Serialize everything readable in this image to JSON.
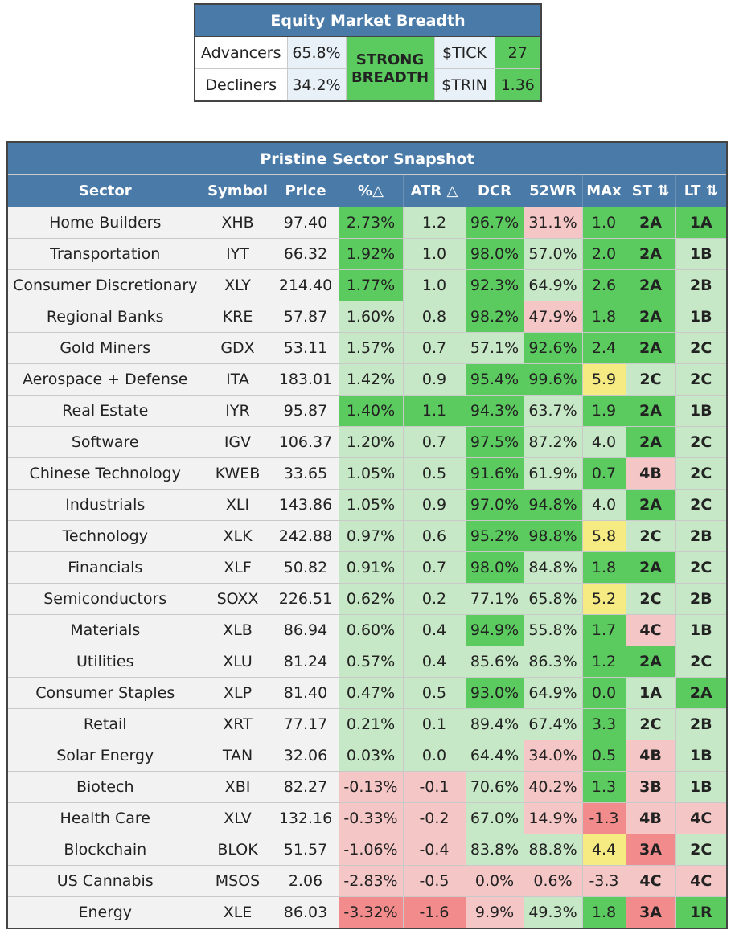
{
  "breadth": {
    "title": "Equity Market Breadth",
    "advancers_label": "Advancers",
    "advancers_value": "65.8%",
    "decliners_label": "Decliners",
    "decliners_value": "34.2%",
    "status": "STRONG BREADTH",
    "tick_label": "$TICK",
    "tick_value": "27",
    "trin_label": "$TRIN",
    "trin_value": "1.36",
    "colors": {
      "status": "#5ccb5f",
      "tick": "#5ccb5f",
      "trin": "#5ccb5f"
    }
  },
  "sector_table": {
    "title": "Pristine Sector Snapshot",
    "columns": [
      "Sector",
      "Symbol",
      "Price",
      "%△",
      "ATR △",
      "DCR",
      "52WR",
      "MAx",
      "ST ⇅",
      "LT ⇅"
    ],
    "palette": {
      "G": "#5ccb5f",
      "L": "#c6e8c6",
      "P": "#f5c6c6",
      "R": "#f28b8b",
      "Y": "#f5eb82"
    },
    "rows": [
      {
        "cells": [
          "Home Builders",
          "XHB",
          "97.40",
          "2.73%",
          "1.2",
          "96.7%",
          "31.1%",
          "1.0",
          "2A",
          "1A"
        ],
        "colors": [
          "G",
          "L",
          "G",
          "P",
          "G",
          "G",
          "G"
        ]
      },
      {
        "cells": [
          "Transportation",
          "IYT",
          "66.32",
          "1.92%",
          "1.0",
          "98.0%",
          "57.0%",
          "2.0",
          "2A",
          "1B"
        ],
        "colors": [
          "G",
          "L",
          "G",
          "L",
          "G",
          "G",
          "L"
        ]
      },
      {
        "cells": [
          "Consumer Discretionary",
          "XLY",
          "214.40",
          "1.77%",
          "1.0",
          "92.3%",
          "64.9%",
          "2.6",
          "2A",
          "2B"
        ],
        "colors": [
          "G",
          "L",
          "G",
          "L",
          "G",
          "G",
          "L"
        ]
      },
      {
        "cells": [
          "Regional Banks",
          "KRE",
          "57.87",
          "1.60%",
          "0.8",
          "98.2%",
          "47.9%",
          "1.8",
          "2A",
          "1B"
        ],
        "colors": [
          "L",
          "L",
          "G",
          "P",
          "G",
          "G",
          "L"
        ]
      },
      {
        "cells": [
          "Gold Miners",
          "GDX",
          "53.11",
          "1.57%",
          "0.7",
          "57.1%",
          "92.6%",
          "2.4",
          "2A",
          "2C"
        ],
        "colors": [
          "L",
          "L",
          "L",
          "G",
          "G",
          "G",
          "L"
        ]
      },
      {
        "cells": [
          "Aerospace + Defense",
          "ITA",
          "183.01",
          "1.42%",
          "0.9",
          "95.4%",
          "99.6%",
          "5.9",
          "2C",
          "2C"
        ],
        "colors": [
          "L",
          "L",
          "G",
          "G",
          "Y",
          "L",
          "L"
        ]
      },
      {
        "cells": [
          "Real Estate",
          "IYR",
          "95.87",
          "1.40%",
          "1.1",
          "94.3%",
          "63.7%",
          "1.9",
          "2A",
          "1B"
        ],
        "colors": [
          "G",
          "G",
          "G",
          "L",
          "G",
          "G",
          "L"
        ]
      },
      {
        "cells": [
          "Software",
          "IGV",
          "106.37",
          "1.20%",
          "0.7",
          "97.5%",
          "87.2%",
          "4.0",
          "2A",
          "2C"
        ],
        "colors": [
          "L",
          "L",
          "G",
          "L",
          "L",
          "G",
          "L"
        ]
      },
      {
        "cells": [
          "Chinese Technology",
          "KWEB",
          "33.65",
          "1.05%",
          "0.5",
          "91.6%",
          "61.9%",
          "0.7",
          "4B",
          "2C"
        ],
        "colors": [
          "L",
          "L",
          "G",
          "L",
          "G",
          "P",
          "L"
        ]
      },
      {
        "cells": [
          "Industrials",
          "XLI",
          "143.86",
          "1.05%",
          "0.9",
          "97.0%",
          "94.8%",
          "4.0",
          "2A",
          "2C"
        ],
        "colors": [
          "L",
          "L",
          "G",
          "G",
          "L",
          "G",
          "L"
        ]
      },
      {
        "cells": [
          "Technology",
          "XLK",
          "242.88",
          "0.97%",
          "0.6",
          "95.2%",
          "98.8%",
          "5.8",
          "2C",
          "2B"
        ],
        "colors": [
          "L",
          "L",
          "G",
          "G",
          "Y",
          "L",
          "L"
        ]
      },
      {
        "cells": [
          "Financials",
          "XLF",
          "50.82",
          "0.91%",
          "0.7",
          "98.0%",
          "84.8%",
          "1.8",
          "2A",
          "2C"
        ],
        "colors": [
          "L",
          "L",
          "G",
          "L",
          "G",
          "G",
          "L"
        ]
      },
      {
        "cells": [
          "Semiconductors",
          "SOXX",
          "226.51",
          "0.62%",
          "0.2",
          "77.1%",
          "65.8%",
          "5.2",
          "2C",
          "2B"
        ],
        "colors": [
          "L",
          "L",
          "L",
          "L",
          "Y",
          "L",
          "L"
        ]
      },
      {
        "cells": [
          "Materials",
          "XLB",
          "86.94",
          "0.60%",
          "0.4",
          "94.9%",
          "55.8%",
          "1.7",
          "4C",
          "1B"
        ],
        "colors": [
          "L",
          "L",
          "G",
          "L",
          "G",
          "P",
          "L"
        ]
      },
      {
        "cells": [
          "Utilities",
          "XLU",
          "81.24",
          "0.57%",
          "0.4",
          "85.6%",
          "86.3%",
          "1.2",
          "2A",
          "2C"
        ],
        "colors": [
          "L",
          "L",
          "L",
          "L",
          "G",
          "G",
          "L"
        ]
      },
      {
        "cells": [
          "Consumer Staples",
          "XLP",
          "81.40",
          "0.47%",
          "0.5",
          "93.0%",
          "64.9%",
          "0.0",
          "1A",
          "2A"
        ],
        "colors": [
          "L",
          "L",
          "G",
          "L",
          "G",
          "L",
          "G"
        ]
      },
      {
        "cells": [
          "Retail",
          "XRT",
          "77.17",
          "0.21%",
          "0.1",
          "89.4%",
          "67.4%",
          "3.3",
          "2C",
          "2B"
        ],
        "colors": [
          "L",
          "L",
          "L",
          "L",
          "G",
          "L",
          "L"
        ]
      },
      {
        "cells": [
          "Solar Energy",
          "TAN",
          "32.06",
          "0.03%",
          "0.0",
          "64.4%",
          "34.0%",
          "0.5",
          "4B",
          "1B"
        ],
        "colors": [
          "L",
          "L",
          "L",
          "P",
          "G",
          "P",
          "L"
        ]
      },
      {
        "cells": [
          "Biotech",
          "XBI",
          "82.27",
          "-0.13%",
          "-0.1",
          "70.6%",
          "40.2%",
          "1.3",
          "3B",
          "1B"
        ],
        "colors": [
          "P",
          "P",
          "L",
          "P",
          "G",
          "P",
          "L"
        ]
      },
      {
        "cells": [
          "Health Care",
          "XLV",
          "132.16",
          "-0.33%",
          "-0.2",
          "67.0%",
          "14.9%",
          "-1.3",
          "4B",
          "4C"
        ],
        "colors": [
          "P",
          "P",
          "L",
          "P",
          "R",
          "P",
          "P"
        ]
      },
      {
        "cells": [
          "Blockchain",
          "BLOK",
          "51.57",
          "-1.06%",
          "-0.4",
          "83.8%",
          "88.8%",
          "4.4",
          "3A",
          "2C"
        ],
        "colors": [
          "P",
          "P",
          "L",
          "L",
          "Y",
          "R",
          "L"
        ]
      },
      {
        "cells": [
          "US Cannabis",
          "MSOS",
          "2.06",
          "-2.83%",
          "-0.5",
          "0.0%",
          "0.6%",
          "-3.3",
          "4C",
          "4C"
        ],
        "colors": [
          "P",
          "P",
          "P",
          "P",
          "P",
          "P",
          "P"
        ]
      },
      {
        "cells": [
          "Energy",
          "XLE",
          "86.03",
          "-3.32%",
          "-1.6",
          "9.9%",
          "49.3%",
          "1.8",
          "3A",
          "1R"
        ],
        "colors": [
          "R",
          "R",
          "P",
          "L",
          "G",
          "R",
          "G"
        ]
      }
    ]
  }
}
